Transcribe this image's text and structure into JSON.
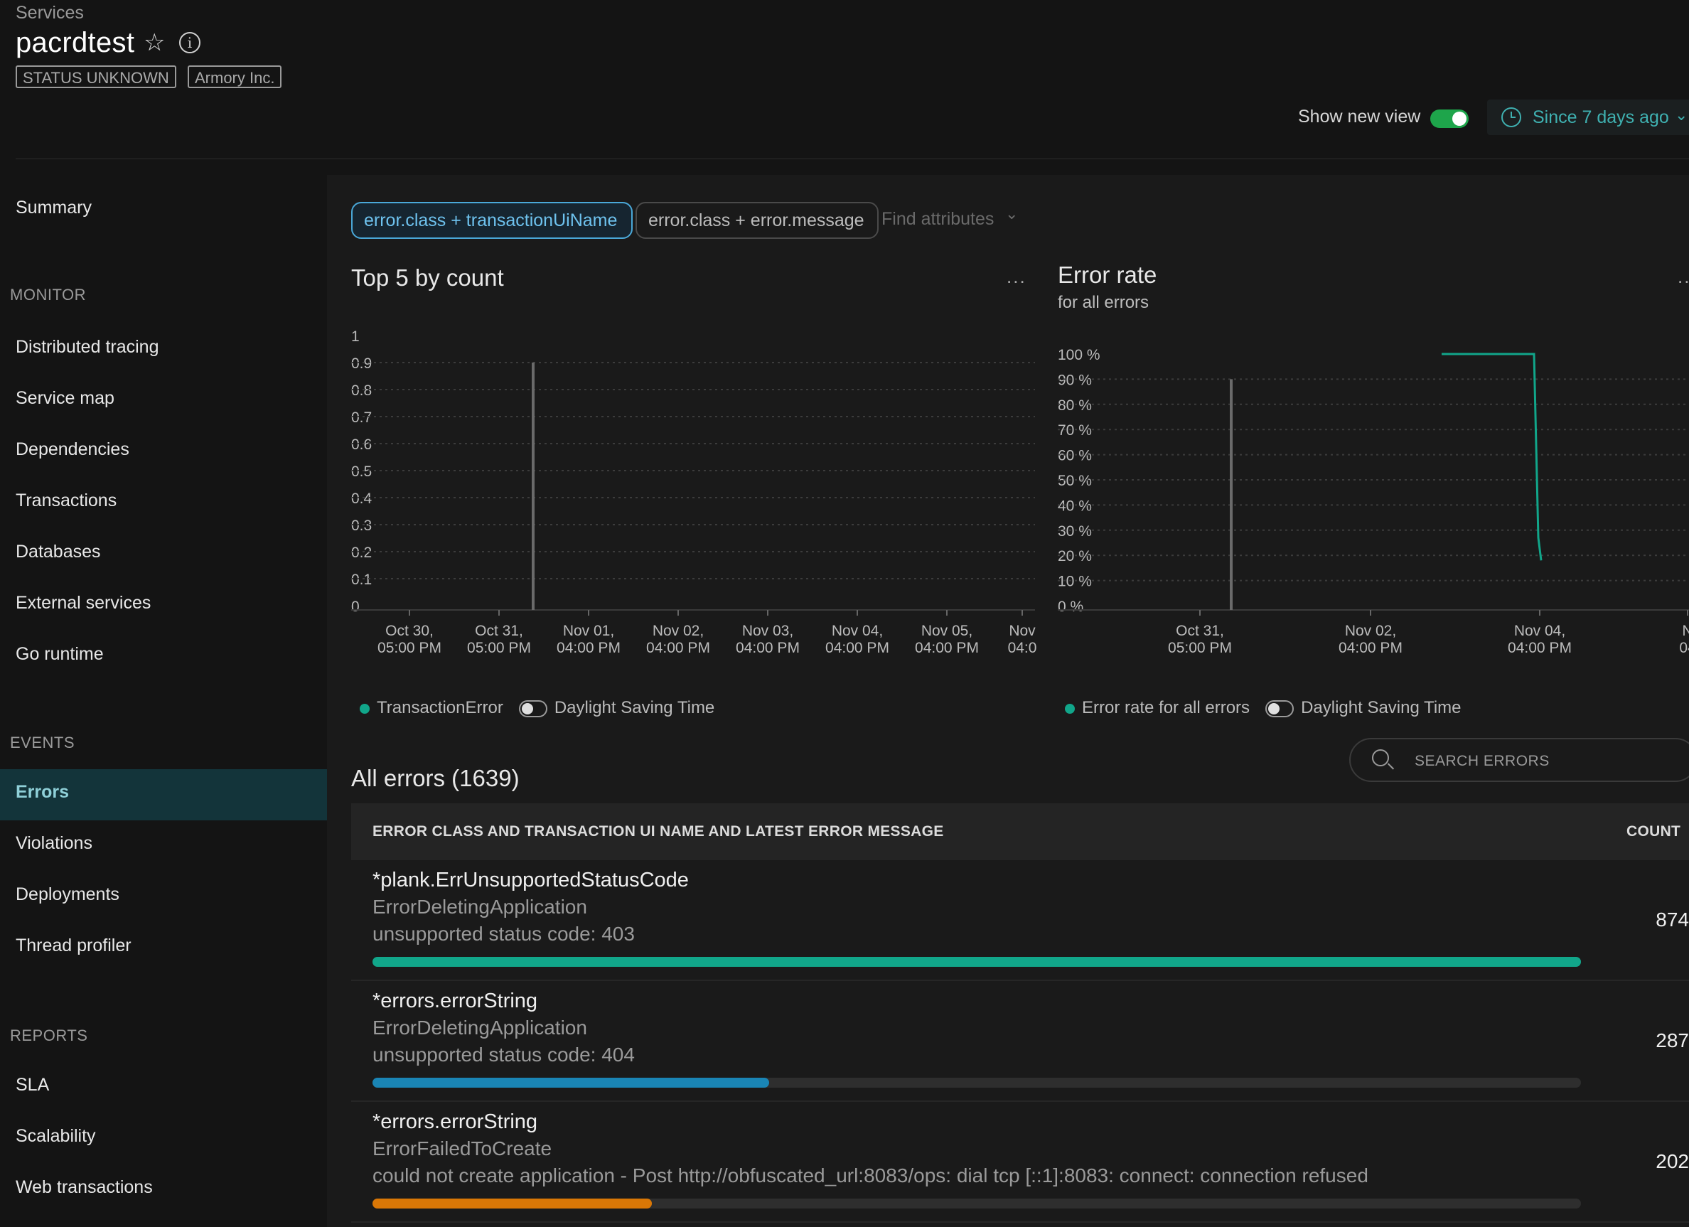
{
  "header": {
    "breadcrumb": "Services",
    "title": "pacrdtest",
    "tags": [
      "STATUS UNKNOWN",
      "Armory Inc."
    ],
    "show_new_view_label": "Show new view",
    "show_new_view_on": true,
    "time_range": "Since 7 days ago",
    "info_glyph": "i"
  },
  "sidebar": {
    "summary": "Summary",
    "sections": [
      {
        "title": "MONITOR",
        "items": [
          "Distributed tracing",
          "Service map",
          "Dependencies",
          "Transactions",
          "Databases",
          "External services",
          "Go runtime"
        ]
      },
      {
        "title": "EVENTS",
        "items": [
          "Errors",
          "Violations",
          "Deployments",
          "Thread profiler"
        ]
      },
      {
        "title": "REPORTS",
        "items": [
          "SLA",
          "Scalability",
          "Web transactions"
        ]
      }
    ],
    "active_item": "Errors"
  },
  "filters": {
    "chips": [
      "error.class + transactionUiName",
      "error.class + error.message"
    ],
    "selected_chip": 0,
    "find_placeholder": "Find attributes"
  },
  "charts": {
    "top5": {
      "title": "Top 5 by count",
      "more": "...",
      "legend": "TransactionError",
      "dst_label": "Daylight Saving Time"
    },
    "error_rate": {
      "title": "Error rate",
      "subtitle": "for all errors",
      "more": "...",
      "legend": "Error rate for all errors",
      "dst_label": "Daylight Saving Time"
    }
  },
  "chart_data": [
    {
      "type": "line",
      "title": "Top 5 by count",
      "ylim": [
        0,
        1
      ],
      "y_ticks": [
        "1",
        "0.9",
        "0.8",
        "0.7",
        "0.6",
        "0.5",
        "0.4",
        "0.3",
        "0.2",
        "0.1",
        "0"
      ],
      "x_tick_labels": [
        [
          "Oct 30,",
          "05:00 PM"
        ],
        [
          "Oct 31,",
          "05:00 PM"
        ],
        [
          "Nov 01,",
          "04:00 PM"
        ],
        [
          "Nov 02,",
          "04:00 PM"
        ],
        [
          "Nov 03,",
          "04:00 PM"
        ],
        [
          "Nov 04,",
          "04:00 PM"
        ],
        [
          "Nov 05,",
          "04:00 PM"
        ],
        [
          "Nov",
          "04:0"
        ]
      ],
      "series": [
        {
          "name": "TransactionError",
          "color": "#11a68a",
          "values": []
        }
      ],
      "marker_line": "Oct 31",
      "grid": true,
      "legend_position": "bottom-left"
    },
    {
      "type": "line",
      "title": "Error rate",
      "subtitle": "for all errors",
      "ylim": [
        0,
        100
      ],
      "y_ticks": [
        "100 %",
        "90 %",
        "80 %",
        "70 %",
        "60 %",
        "50 %",
        "40 %",
        "30 %",
        "20 %",
        "10 %",
        "0 %"
      ],
      "x_tick_labels": [
        [
          "Oct 31,",
          "05:00 PM"
        ],
        [
          "Nov 02,",
          "04:00 PM"
        ],
        [
          "Nov 04,",
          "04:00 PM"
        ],
        [
          "N",
          "04"
        ]
      ],
      "series": [
        {
          "name": "Error rate for all errors",
          "color": "#11a68a",
          "points": [
            [
              "Nov 03",
              100
            ],
            [
              "Nov 04",
              100
            ],
            [
              "Nov 04",
              27
            ],
            [
              "Nov 04",
              18
            ]
          ]
        }
      ],
      "marker_line": "Oct 31",
      "grid": true,
      "legend_position": "bottom-left"
    }
  ],
  "errors": {
    "title": "All errors (1639)",
    "search_placeholder": "SEARCH ERRORS",
    "columns": [
      "ERROR CLASS AND TRANSACTION UI NAME AND LATEST ERROR MESSAGE",
      "COUNT"
    ],
    "max_count": 874,
    "rows": [
      {
        "error_class": "*plank.ErrUnsupportedStatusCode",
        "transaction": "ErrorDeletingApplication",
        "message": "unsupported status code: 403",
        "count": 874,
        "bar_color": "#11a68a"
      },
      {
        "error_class": "*errors.errorString",
        "transaction": "ErrorDeletingApplication",
        "message": "unsupported status code: 404",
        "count": 287,
        "bar_color": "#1a85b5"
      },
      {
        "error_class": "*errors.errorString",
        "transaction": "ErrorFailedToCreate",
        "message": "could not create application - Post http://obfuscated_url:8083/ops: dial tcp [::1]:8083: connect: connection refused",
        "count": 202,
        "bar_color": "#d97706"
      }
    ]
  }
}
